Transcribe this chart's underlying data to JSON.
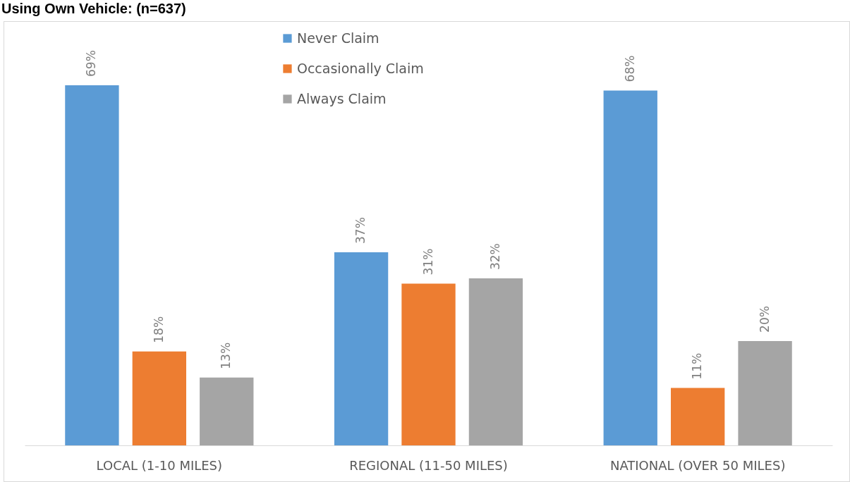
{
  "chart_data": {
    "type": "bar",
    "title": "Using Own Vehicle: (n=637)",
    "categories": [
      "LOCAL (1-10 MILES)",
      "REGIONAL (11-50 MILES)",
      "NATIONAL (OVER 50 MILES)"
    ],
    "series": [
      {
        "name": "Never Claim",
        "color": "#5b9bd5",
        "values": [
          69,
          37,
          68
        ],
        "value_labels": [
          "69%",
          "37%",
          "68%"
        ]
      },
      {
        "name": "Occasionally Claim",
        "color": "#ed7d31",
        "values": [
          18,
          31,
          11
        ],
        "value_labels": [
          "18%",
          "31%",
          "11%"
        ]
      },
      {
        "name": "Always Claim",
        "color": "#a5a5a5",
        "values": [
          13,
          32,
          20
        ],
        "value_labels": [
          "13%",
          "32%",
          "20%"
        ]
      }
    ],
    "tick_labels": "x",
    "legend": "top"
  }
}
